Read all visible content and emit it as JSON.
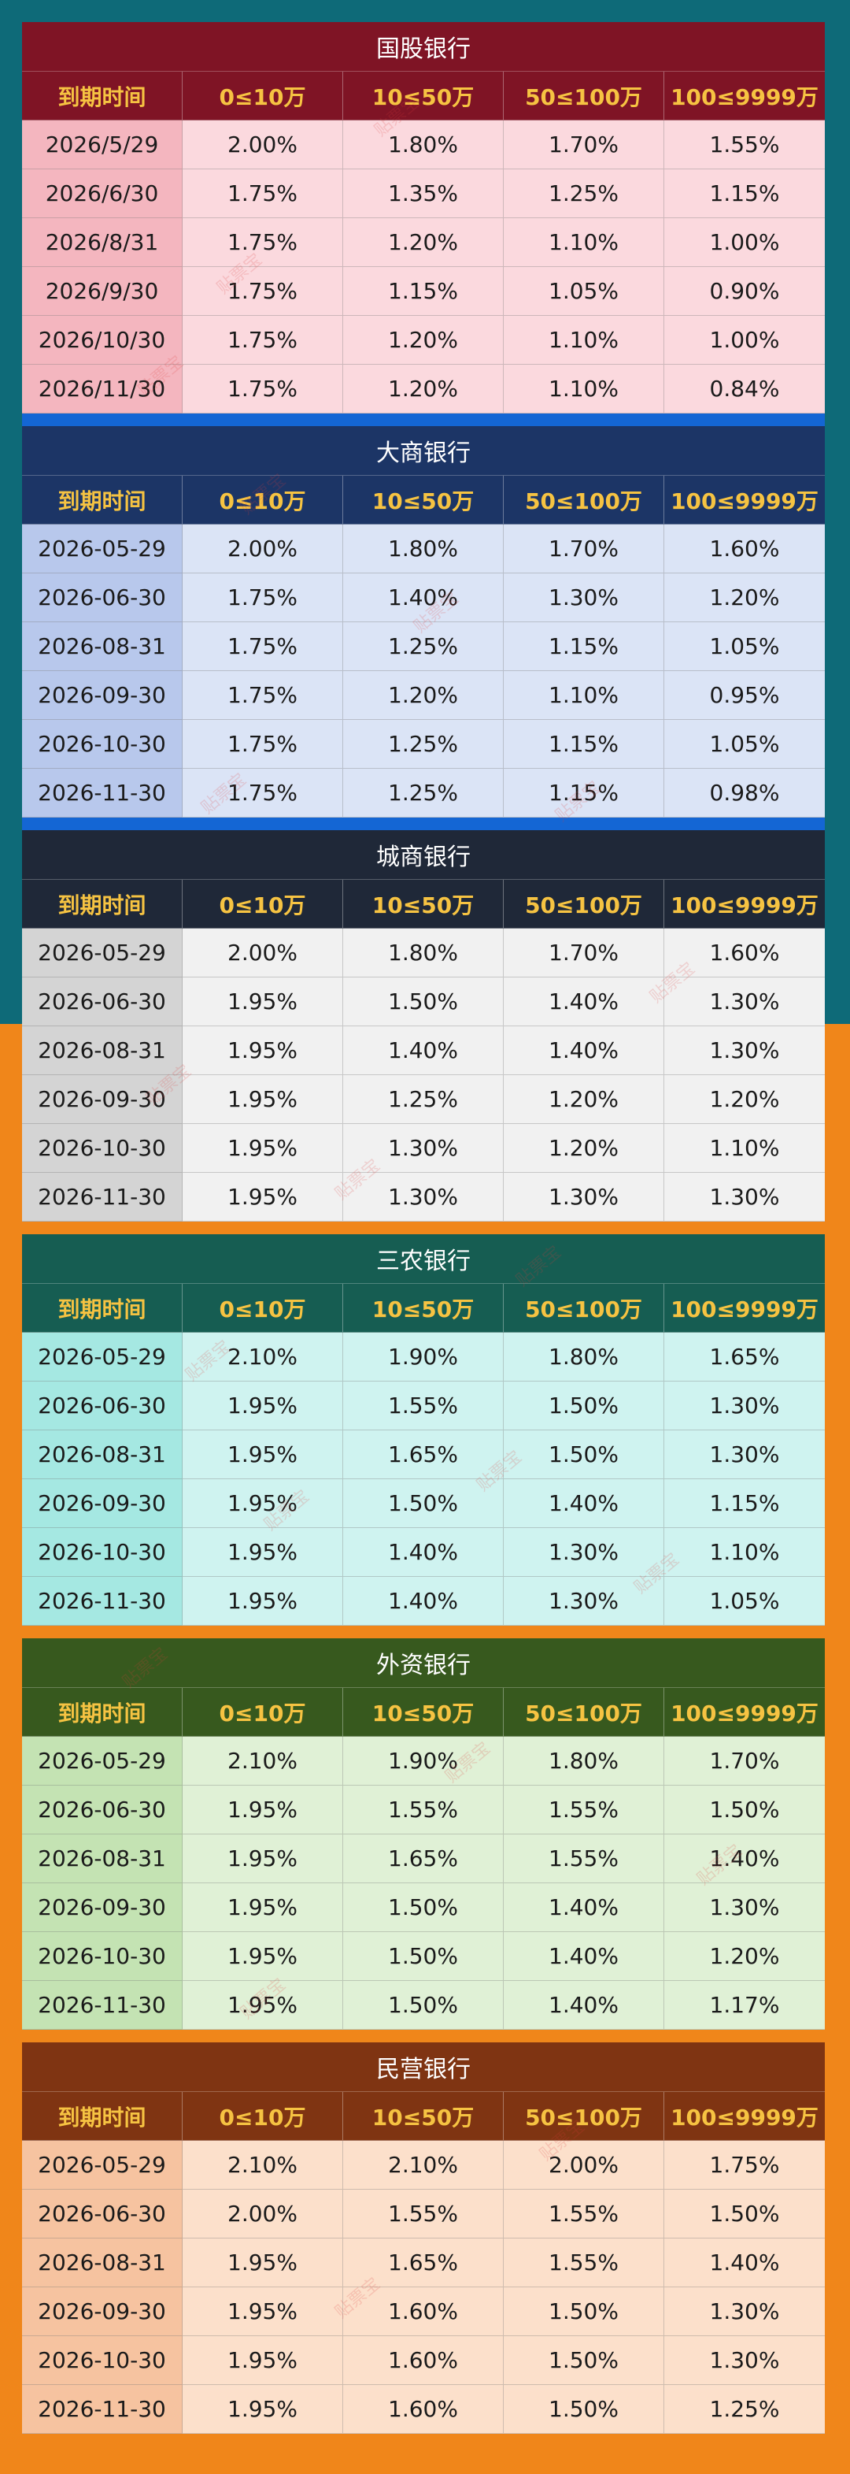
{
  "colors": {
    "bg_top": "#0e6a78",
    "bg_bottom": "#f0861a",
    "header_text": "#f6c342"
  },
  "headers": [
    "到期时间",
    "0≤10万",
    "10≤50万",
    "50≤100万",
    "100≤9999万"
  ],
  "watermark": "贴票宝",
  "sections": [
    {
      "title": "国股银行",
      "title_bg": "#7f1425",
      "header_bg": "#7f1425",
      "first_col_bg": "#f4b6bf",
      "cell_bg": "#fbd9de",
      "sep_color": "#1466d4",
      "rows": [
        [
          "2026/5/29",
          "2.00%",
          "1.80%",
          "1.70%",
          "1.55%"
        ],
        [
          "2026/6/30",
          "1.75%",
          "1.35%",
          "1.25%",
          "1.15%"
        ],
        [
          "2026/8/31",
          "1.75%",
          "1.20%",
          "1.10%",
          "1.00%"
        ],
        [
          "2026/9/30",
          "1.75%",
          "1.15%",
          "1.05%",
          "0.90%"
        ],
        [
          "2026/10/30",
          "1.75%",
          "1.20%",
          "1.10%",
          "1.00%"
        ],
        [
          "2026/11/30",
          "1.75%",
          "1.20%",
          "1.10%",
          "0.84%"
        ]
      ]
    },
    {
      "title": "大商银行",
      "title_bg": "#1c3566",
      "header_bg": "#1c3566",
      "first_col_bg": "#b8c8ec",
      "cell_bg": "#dbe4f6",
      "sep_color": "#1466d4",
      "rows": [
        [
          "2026-05-29",
          "2.00%",
          "1.80%",
          "1.70%",
          "1.60%"
        ],
        [
          "2026-06-30",
          "1.75%",
          "1.40%",
          "1.30%",
          "1.20%"
        ],
        [
          "2026-08-31",
          "1.75%",
          "1.25%",
          "1.15%",
          "1.05%"
        ],
        [
          "2026-09-30",
          "1.75%",
          "1.20%",
          "1.10%",
          "0.95%"
        ],
        [
          "2026-10-30",
          "1.75%",
          "1.25%",
          "1.15%",
          "1.05%"
        ],
        [
          "2026-11-30",
          "1.75%",
          "1.25%",
          "1.15%",
          "0.98%"
        ]
      ]
    },
    {
      "title": "城商银行",
      "title_bg": "#1f2838",
      "header_bg": "#1f2838",
      "first_col_bg": "#d4d4d4",
      "cell_bg": "#f1f1f1",
      "sep_color": "#f0861a",
      "rows": [
        [
          "2026-05-29",
          "2.00%",
          "1.80%",
          "1.70%",
          "1.60%"
        ],
        [
          "2026-06-30",
          "1.95%",
          "1.50%",
          "1.40%",
          "1.30%"
        ],
        [
          "2026-08-31",
          "1.95%",
          "1.40%",
          "1.40%",
          "1.30%"
        ],
        [
          "2026-09-30",
          "1.95%",
          "1.25%",
          "1.20%",
          "1.20%"
        ],
        [
          "2026-10-30",
          "1.95%",
          "1.30%",
          "1.20%",
          "1.10%"
        ],
        [
          "2026-11-30",
          "1.95%",
          "1.30%",
          "1.30%",
          "1.30%"
        ]
      ]
    },
    {
      "title": "三农银行",
      "title_bg": "#165d52",
      "header_bg": "#165d52",
      "first_col_bg": "#a5e8e2",
      "cell_bg": "#cff3f0",
      "sep_color": "#f0861a",
      "rows": [
        [
          "2026-05-29",
          "2.10%",
          "1.90%",
          "1.80%",
          "1.65%"
        ],
        [
          "2026-06-30",
          "1.95%",
          "1.55%",
          "1.50%",
          "1.30%"
        ],
        [
          "2026-08-31",
          "1.95%",
          "1.65%",
          "1.50%",
          "1.30%"
        ],
        [
          "2026-09-30",
          "1.95%",
          "1.50%",
          "1.40%",
          "1.15%"
        ],
        [
          "2026-10-30",
          "1.95%",
          "1.40%",
          "1.30%",
          "1.10%"
        ],
        [
          "2026-11-30",
          "1.95%",
          "1.40%",
          "1.30%",
          "1.05%"
        ]
      ]
    },
    {
      "title": "外资银行",
      "title_bg": "#37591e",
      "header_bg": "#37591e",
      "first_col_bg": "#c4e3b3",
      "cell_bg": "#e0f1d6",
      "sep_color": "#f0861a",
      "rows": [
        [
          "2026-05-29",
          "2.10%",
          "1.90%",
          "1.80%",
          "1.70%"
        ],
        [
          "2026-06-30",
          "1.95%",
          "1.55%",
          "1.55%",
          "1.50%"
        ],
        [
          "2026-08-31",
          "1.95%",
          "1.65%",
          "1.55%",
          "1.40%"
        ],
        [
          "2026-09-30",
          "1.95%",
          "1.50%",
          "1.40%",
          "1.30%"
        ],
        [
          "2026-10-30",
          "1.95%",
          "1.50%",
          "1.40%",
          "1.20%"
        ],
        [
          "2026-11-30",
          "1.95%",
          "1.50%",
          "1.40%",
          "1.17%"
        ]
      ]
    },
    {
      "title": "民营银行",
      "title_bg": "#7f3412",
      "header_bg": "#7f3412",
      "first_col_bg": "#f6c3a0",
      "cell_bg": "#fce0cb",
      "sep_color": "#f0861a",
      "rows": [
        [
          "2026-05-29",
          "2.10%",
          "2.10%",
          "2.00%",
          "1.75%"
        ],
        [
          "2026-06-30",
          "2.00%",
          "1.55%",
          "1.55%",
          "1.50%"
        ],
        [
          "2026-08-31",
          "1.95%",
          "1.65%",
          "1.55%",
          "1.40%"
        ],
        [
          "2026-09-30",
          "1.95%",
          "1.60%",
          "1.50%",
          "1.30%"
        ],
        [
          "2026-10-30",
          "1.95%",
          "1.60%",
          "1.50%",
          "1.30%"
        ],
        [
          "2026-11-30",
          "1.95%",
          "1.60%",
          "1.50%",
          "1.25%"
        ]
      ]
    }
  ]
}
